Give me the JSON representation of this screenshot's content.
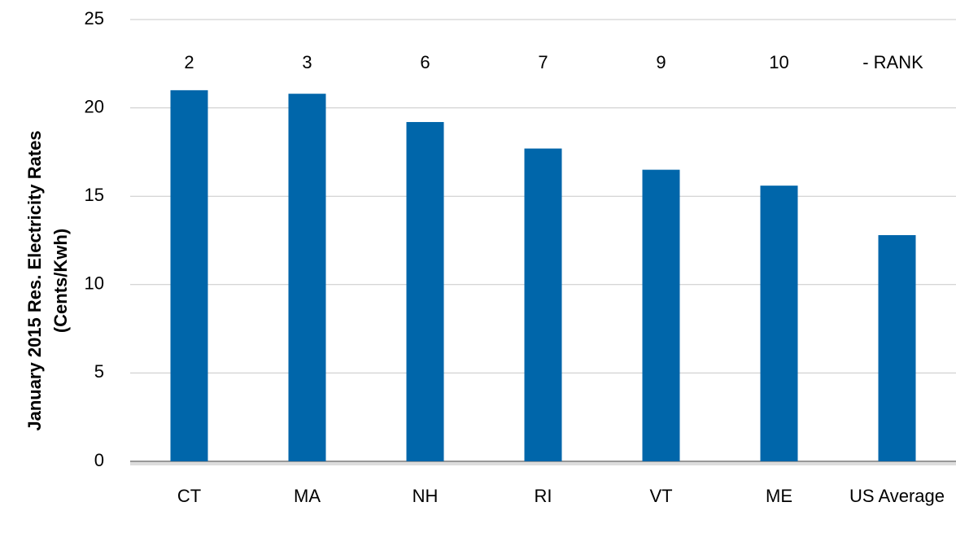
{
  "chart_data": {
    "type": "bar",
    "ylabel": [
      "January 2015 Res. Electricity Rates",
      "(Cents/Kwh)"
    ],
    "categories": [
      "CT",
      "MA",
      "NH",
      "RI",
      "VT",
      "ME",
      "US Average"
    ],
    "values": [
      21.0,
      20.8,
      19.2,
      17.7,
      16.5,
      15.6,
      12.8
    ],
    "color": "#0066aa",
    "ranks": [
      2,
      3,
      6,
      7,
      9,
      10
    ],
    "rank_note": "- RANK",
    "ylim": [
      0,
      25
    ],
    "yticks": [
      0,
      5,
      10,
      15,
      20,
      25
    ],
    "grid": true
  }
}
